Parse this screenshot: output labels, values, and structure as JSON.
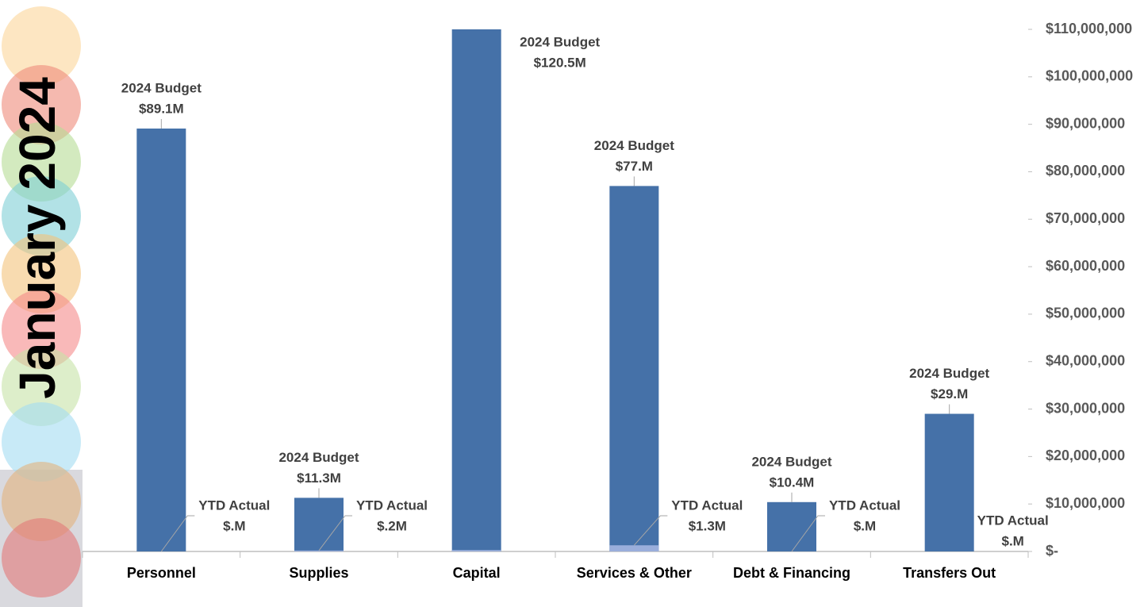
{
  "chart_data": {
    "type": "bar",
    "title": "January 2024",
    "categories": [
      "Personnel",
      "Supplies",
      "Capital",
      "Services & Other",
      "Debt & Financing",
      "Transfers Out"
    ],
    "series": [
      {
        "name": "2024 Budget",
        "color": "#4571a8",
        "values": [
          89100000,
          11300000,
          120500000,
          77000000,
          10400000,
          29000000
        ],
        "value_labels": [
          "$89.1M",
          "$11.3M",
          "$120.5M",
          "$77.M",
          "$10.4M",
          "$29.M"
        ]
      },
      {
        "name": "YTD Actual",
        "color": "#9aaedb",
        "values": [
          0,
          200000,
          300000,
          1300000,
          0,
          0
        ],
        "value_labels": [
          "$.M",
          "$.2M",
          null,
          "$1.3M",
          "$.M",
          "$.M"
        ]
      }
    ],
    "ylim": [
      0,
      110000000
    ],
    "yticks": [
      {
        "value": 0,
        "label": "$-"
      },
      {
        "value": 10000000,
        "label": "$10,000,000"
      },
      {
        "value": 20000000,
        "label": "$20,000,000"
      },
      {
        "value": 30000000,
        "label": "$30,000,000"
      },
      {
        "value": 40000000,
        "label": "$40,000,000"
      },
      {
        "value": 50000000,
        "label": "$50,000,000"
      },
      {
        "value": 60000000,
        "label": "$60,000,000"
      },
      {
        "value": 70000000,
        "label": "$70,000,000"
      },
      {
        "value": 80000000,
        "label": "$80,000,000"
      },
      {
        "value": 90000000,
        "label": "$90,000,000"
      },
      {
        "value": 100000000,
        "label": "$100,000,000"
      },
      {
        "value": 110000000,
        "label": "$110,000,000"
      }
    ],
    "grid": false
  }
}
